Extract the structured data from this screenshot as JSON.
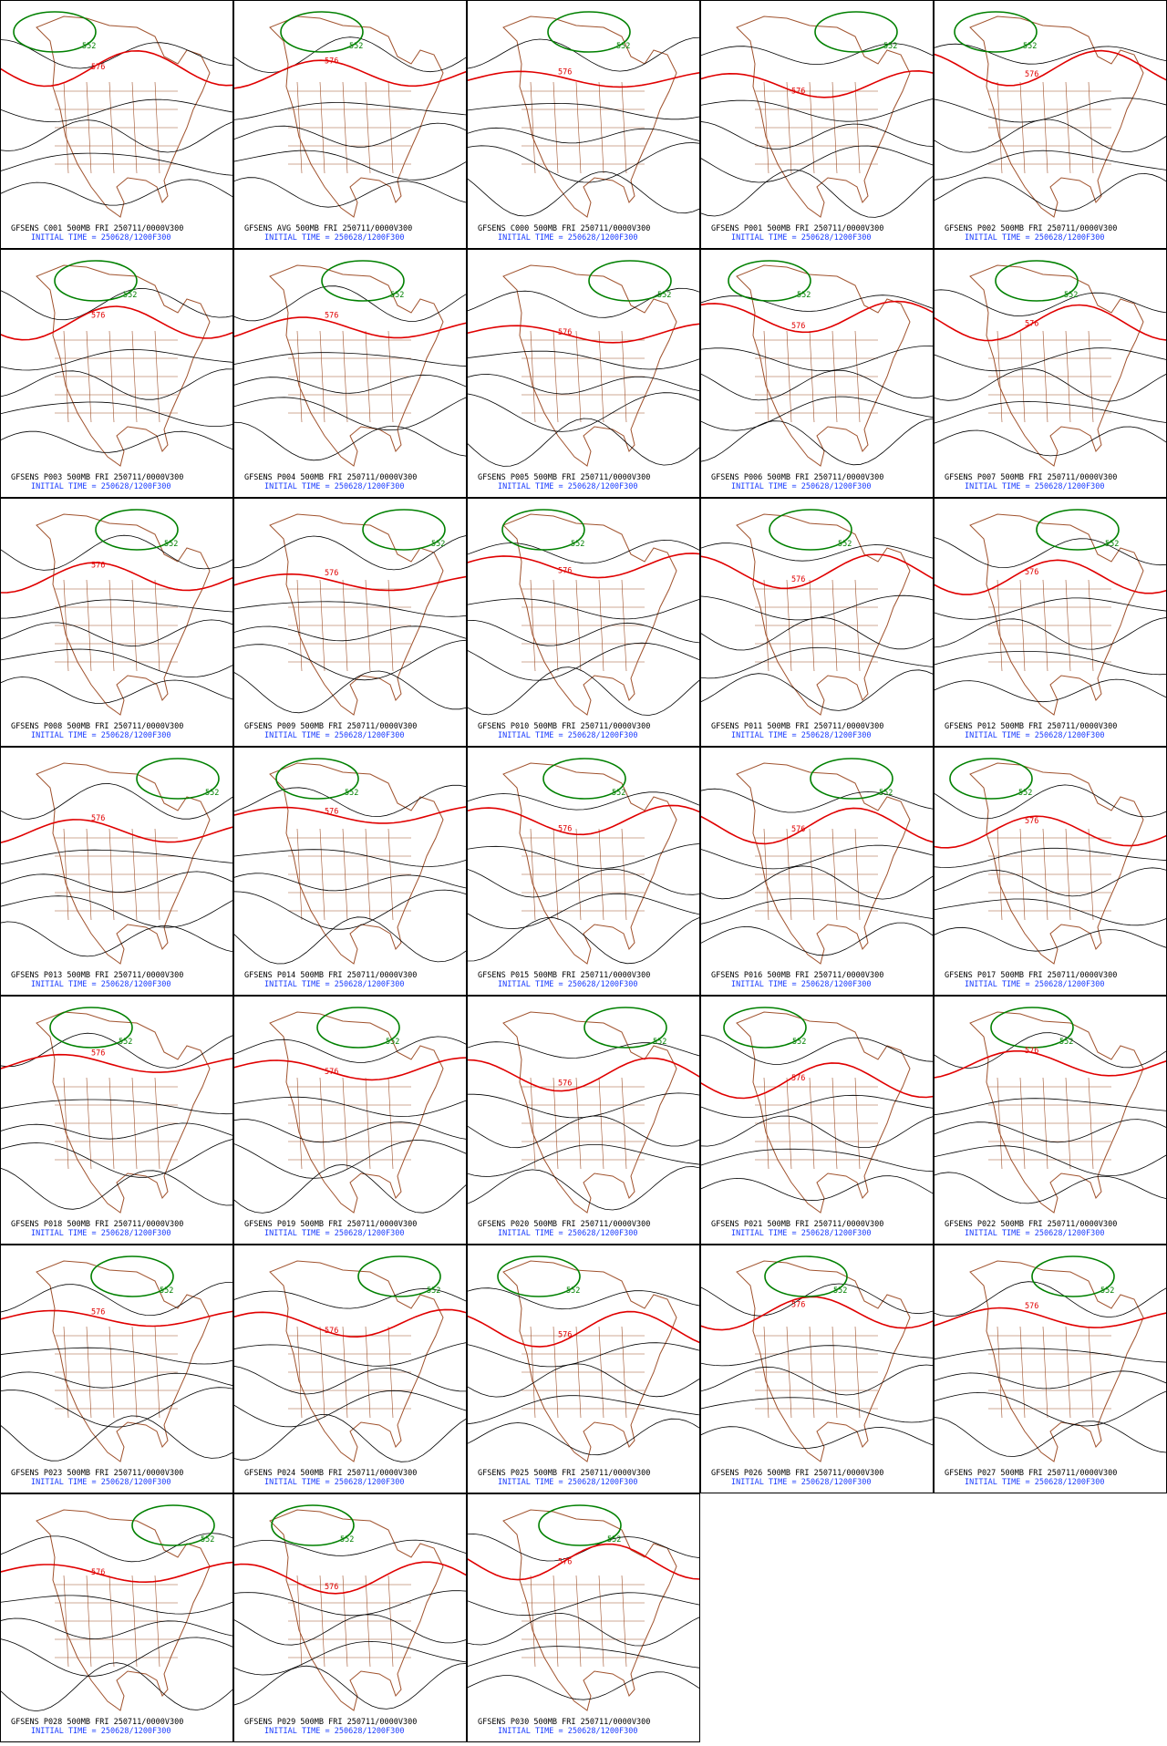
{
  "panels": [
    {
      "label": "GFSENS C001 500MB FRI 250711/0000V300",
      "init": "INITIAL TIME = 250628/1200F300",
      "contours": [
        576,
        552
      ]
    },
    {
      "label": "GFSENS AVG 500MB FRI 250711/0000V300",
      "init": "INITIAL TIME = 250628/1200F300",
      "contours": [
        576,
        552
      ]
    },
    {
      "label": "GFSENS C000 500MB FRI 250711/0000V300",
      "init": "INITIAL TIME = 250628/1200F300",
      "contours": [
        576,
        552
      ]
    },
    {
      "label": "GFSENS P001 500MB FRI 250711/0000V300",
      "init": "INITIAL TIME = 250628/1200F300",
      "contours": [
        576,
        552
      ]
    },
    {
      "label": "GFSENS P002 500MB FRI 250711/0000V300",
      "init": "INITIAL TIME = 250628/1200F300",
      "contours": [
        576,
        552
      ]
    },
    {
      "label": "GFSENS P003 500MB FRI 250711/0000V300",
      "init": "INITIAL TIME = 250628/1200F300",
      "contours": [
        576,
        552
      ]
    },
    {
      "label": "GFSENS P004 500MB FRI 250711/0000V300",
      "init": "INITIAL TIME = 250628/1200F300",
      "contours": [
        576,
        552
      ]
    },
    {
      "label": "GFSENS P005 500MB FRI 250711/0000V300",
      "init": "INITIAL TIME = 250628/1200F300",
      "contours": [
        576,
        552
      ]
    },
    {
      "label": "GFSENS P006 500MB FRI 250711/0000V300",
      "init": "INITIAL TIME = 250628/1200F300",
      "contours": [
        576,
        552
      ]
    },
    {
      "label": "GFSENS P007 500MB FRI 250711/0000V300",
      "init": "INITIAL TIME = 250628/1200F300",
      "contours": [
        576,
        552
      ]
    },
    {
      "label": "GFSENS P008 500MB FRI 250711/0000V300",
      "init": "INITIAL TIME = 250628/1200F300",
      "contours": [
        576,
        552
      ]
    },
    {
      "label": "GFSENS P009 500MB FRI 250711/0000V300",
      "init": "INITIAL TIME = 250628/1200F300",
      "contours": [
        576,
        552
      ]
    },
    {
      "label": "GFSENS P010 500MB FRI 250711/0000V300",
      "init": "INITIAL TIME = 250628/1200F300",
      "contours": [
        576,
        552
      ]
    },
    {
      "label": "GFSENS P011 500MB FRI 250711/0000V300",
      "init": "INITIAL TIME = 250628/1200F300",
      "contours": [
        576,
        552
      ]
    },
    {
      "label": "GFSENS P012 500MB FRI 250711/0000V300",
      "init": "INITIAL TIME = 250628/1200F300",
      "contours": [
        576,
        552
      ]
    },
    {
      "label": "GFSENS P013 500MB FRI 250711/0000V300",
      "init": "INITIAL TIME = 250628/1200F300",
      "contours": [
        576,
        552
      ]
    },
    {
      "label": "GFSENS P014 500MB FRI 250711/0000V300",
      "init": "INITIAL TIME = 250628/1200F300",
      "contours": [
        576,
        552
      ]
    },
    {
      "label": "GFSENS P015 500MB FRI 250711/0000V300",
      "init": "INITIAL TIME = 250628/1200F300",
      "contours": [
        576,
        552
      ]
    },
    {
      "label": "GFSENS P016 500MB FRI 250711/0000V300",
      "init": "INITIAL TIME = 250628/1200F300",
      "contours": [
        576,
        552
      ]
    },
    {
      "label": "GFSENS P017 500MB FRI 250711/0000V300",
      "init": "INITIAL TIME = 250628/1200F300",
      "contours": [
        576,
        552
      ]
    },
    {
      "label": "GFSENS P018 500MB FRI 250711/0000V300",
      "init": "INITIAL TIME = 250628/1200F300",
      "contours": [
        576,
        552
      ]
    },
    {
      "label": "GFSENS P019 500MB FRI 250711/0000V300",
      "init": "INITIAL TIME = 250628/1200F300",
      "contours": [
        576,
        552
      ]
    },
    {
      "label": "GFSENS P020 500MB FRI 250711/0000V300",
      "init": "INITIAL TIME = 250628/1200F300",
      "contours": [
        576,
        552
      ]
    },
    {
      "label": "GFSENS P021 500MB FRI 250711/0000V300",
      "init": "INITIAL TIME = 250628/1200F300",
      "contours": [
        576,
        552
      ]
    },
    {
      "label": "GFSENS P022 500MB FRI 250711/0000V300",
      "init": "INITIAL TIME = 250628/1200F300",
      "contours": [
        576,
        552
      ]
    },
    {
      "label": "GFSENS P023 500MB FRI 250711/0000V300",
      "init": "INITIAL TIME = 250628/1200F300",
      "contours": [
        576,
        552
      ]
    },
    {
      "label": "GFSENS P024 500MB FRI 250711/0000V300",
      "init": "INITIAL TIME = 250628/1200F300",
      "contours": [
        576,
        552
      ]
    },
    {
      "label": "GFSENS P025 500MB FRI 250711/0000V300",
      "init": "INITIAL TIME = 250628/1200F300",
      "contours": [
        576,
        552
      ]
    },
    {
      "label": "GFSENS P026 500MB FRI 250711/0000V300",
      "init": "INITIAL TIME = 250628/1200F300",
      "contours": [
        576,
        552
      ]
    },
    {
      "label": "GFSENS P027 500MB FRI 250711/0000V300",
      "init": "INITIAL TIME = 250628/1200F300",
      "contours": [
        576,
        552
      ]
    },
    {
      "label": "GFSENS P028 500MB FRI 250711/0000V300",
      "init": "INITIAL TIME = 250628/1200F300",
      "contours": [
        576,
        552
      ]
    },
    {
      "label": "GFSENS P029 500MB FRI 250711/0000V300",
      "init": "INITIAL TIME = 250628/1200F300",
      "contours": [
        576,
        552
      ]
    },
    {
      "label": "GFSENS P030 500MB FRI 250711/0000V300",
      "init": "INITIAL TIME = 250628/1200F300",
      "contours": [
        576,
        552
      ]
    }
  ]
}
